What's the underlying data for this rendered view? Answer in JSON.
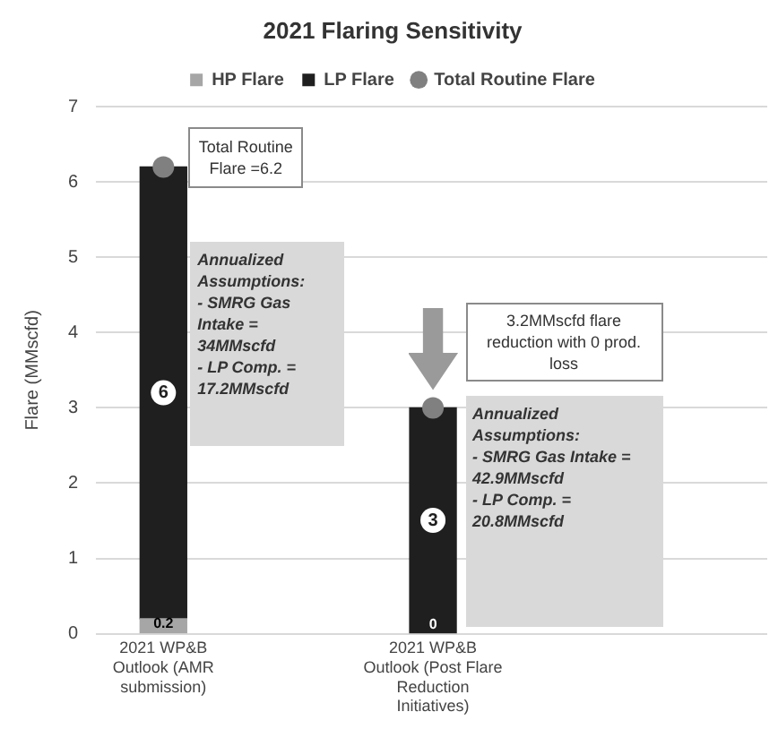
{
  "chart_data": {
    "type": "bar",
    "title": "2021 Flaring Sensitivity",
    "ylabel": "Flare (MMscfd)",
    "categories": [
      "2021 WP&B Outlook (AMR submission)",
      "2021 WP&B Outlook (Post Flare Reduction Initiatives)"
    ],
    "stacked": true,
    "series": [
      {
        "name": "HP Flare",
        "color": "#a6a6a6",
        "values": [
          0.2,
          0
        ],
        "value_labels": [
          "0.2",
          "0"
        ]
      },
      {
        "name": "LP Flare",
        "color": "#1f1f1f",
        "values": [
          6,
          3
        ],
        "value_labels": [
          "6",
          "3"
        ]
      },
      {
        "name": "Total Routine Flare",
        "type": "scatter",
        "color": "#808080",
        "x": [
          "2021 WP&B Outlook (AMR submission)",
          "2021 WP&B Outlook (Post Flare Reduction Initiatives)"
        ],
        "values": [
          6.2,
          3.0
        ]
      }
    ],
    "ylim": [
      0,
      7
    ],
    "yticks": [
      0,
      1,
      2,
      3,
      4,
      5,
      6,
      7
    ],
    "grid": "y",
    "legend": "top",
    "marker": "circle",
    "annotations": [
      {
        "text": "Total Routine Flare =6.2",
        "x": "2021 WP&B Outlook (AMR submission)",
        "y": 6.2
      },
      "Annualized Assumptions: - SMRG Gas Intake = 34MMscfd - LP Comp. = 17.2MMscfd",
      "3.2MMscfd flare reduction with 0 prod. loss",
      "Annualized Assumptions: - SMRG Gas Intake = 42.9MMscfd - LP Comp. = 20.8MMscfd"
    ]
  }
}
